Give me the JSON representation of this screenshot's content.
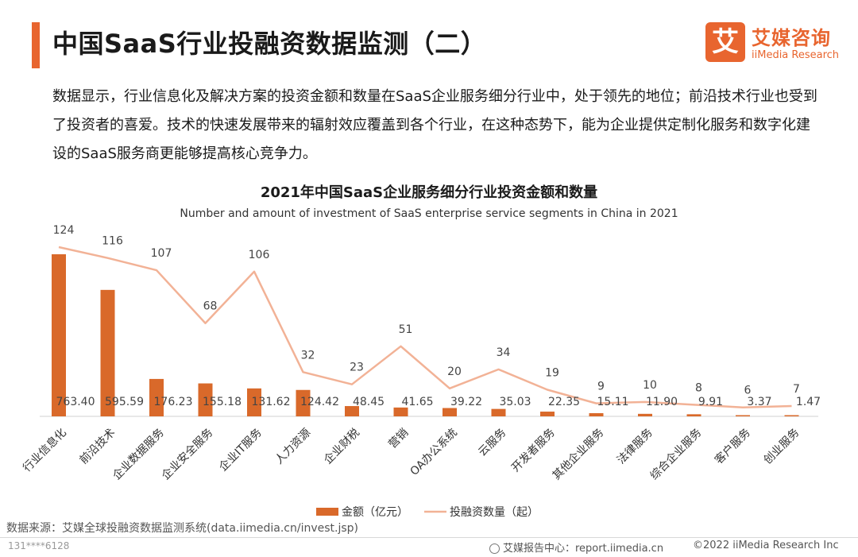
{
  "header": {
    "title": "中国SaaS行业投融资数据监测（二）",
    "logo_mark": "艾",
    "logo_cn": "艾媒咨询",
    "logo_en": "iiMedia Research"
  },
  "description": "数据显示，行业信息化及解决方案的投资金额和数量在SaaS企业服务细分行业中，处于领先的地位；前沿技术行业也受到了投资者的喜爱。技术的快速发展带来的辐射效应覆盖到各个行业，在这种态势下，能为企业提供定制化服务和数字化建设的SaaS服务商更能够提高核心竞争力。",
  "chart_data": {
    "type": "bar",
    "title": "2021年中国SaaS企业服务细分行业投资金额和数量",
    "subtitle": "Number and amount of investment of SaaS enterprise service segments in China in 2021",
    "categories": [
      "行业信息化",
      "前沿技术",
      "企业数据服务",
      "企业安全服务",
      "企业IT服务",
      "人力资源",
      "企业财税",
      "营销",
      "OA办公系统",
      "云服务",
      "开发者服务",
      "其他企业服务",
      "法律服务",
      "综合企业服务",
      "客户服务",
      "创业服务"
    ],
    "series": [
      {
        "name": "金额（亿元）",
        "type": "bar",
        "color": "#d9692a",
        "values": [
          763.4,
          595.59,
          176.23,
          155.18,
          131.62,
          124.42,
          48.45,
          41.65,
          39.22,
          35.03,
          22.35,
          15.11,
          11.9,
          9.91,
          3.37,
          1.47
        ],
        "labels": [
          "763.40",
          "595.59",
          "176.23",
          "155.18",
          "131.62",
          "124.42",
          "48.45",
          "41.65",
          "39.22",
          "35.03",
          "22.35",
          "15.11",
          "11.90",
          "9.91",
          "3.37",
          "1.47"
        ]
      },
      {
        "name": "投融资数量（起）",
        "type": "line",
        "color": "#f2b296",
        "values": [
          124,
          116,
          107,
          68,
          106,
          32,
          23,
          51,
          20,
          34,
          19,
          9,
          10,
          8,
          6,
          7
        ]
      }
    ],
    "legend": "bottom-center"
  },
  "footer": {
    "source": "数据来源：艾媒全球投融资数据监测系统(data.iimedia.cn/invest.jsp)",
    "watermark": "131****6128",
    "center": "艾媒报告中心：report.iimedia.cn",
    "right": "©2022 iiMedia Research Inc"
  }
}
